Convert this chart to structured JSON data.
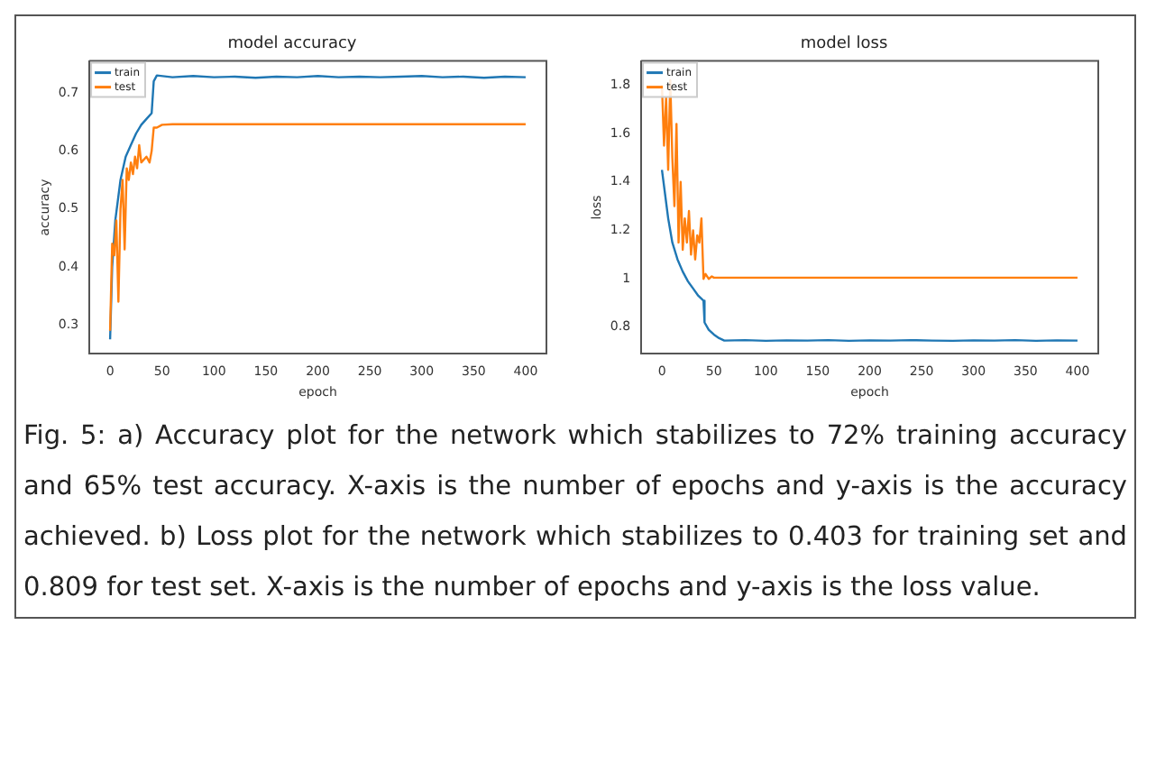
{
  "chart_data": [
    {
      "type": "line",
      "title": "model accuracy",
      "xlabel": "epoch",
      "ylabel": "accuracy",
      "xlim": [
        -20,
        420
      ],
      "xticks": [
        0,
        50,
        100,
        150,
        200,
        250,
        300,
        350,
        400
      ],
      "ylim": [
        0.25,
        0.755
      ],
      "yticks": [
        0.3,
        0.4,
        0.5,
        0.6,
        0.7
      ],
      "grid": false,
      "legend": "top left",
      "marker": "none",
      "line_style": "solid",
      "series": [
        {
          "name": "train",
          "color": "#1f77b4",
          "x": [
            0,
            2,
            5,
            10,
            15,
            20,
            25,
            30,
            35,
            40,
            42,
            45,
            60,
            80,
            100,
            120,
            140,
            160,
            180,
            200,
            220,
            240,
            260,
            280,
            300,
            320,
            340,
            360,
            380,
            400
          ],
          "values": [
            0.275,
            0.4,
            0.48,
            0.55,
            0.59,
            0.61,
            0.63,
            0.645,
            0.655,
            0.665,
            0.72,
            0.73,
            0.727,
            0.729,
            0.727,
            0.728,
            0.726,
            0.728,
            0.727,
            0.729,
            0.727,
            0.728,
            0.727,
            0.728,
            0.729,
            0.727,
            0.728,
            0.726,
            0.728,
            0.727
          ]
        },
        {
          "name": "test",
          "color": "#ff7f0e",
          "x": [
            0,
            2,
            4,
            6,
            8,
            10,
            12,
            14,
            16,
            18,
            20,
            22,
            24,
            26,
            28,
            30,
            35,
            38,
            40,
            42,
            45,
            50,
            60,
            400
          ],
          "values": [
            0.29,
            0.44,
            0.42,
            0.48,
            0.34,
            0.5,
            0.55,
            0.43,
            0.57,
            0.55,
            0.58,
            0.56,
            0.59,
            0.57,
            0.61,
            0.58,
            0.59,
            0.58,
            0.6,
            0.64,
            0.64,
            0.645,
            0.646,
            0.646
          ]
        }
      ]
    },
    {
      "type": "line",
      "title": "model loss",
      "xlabel": "epoch",
      "ylabel": "loss",
      "xlim": [
        -20,
        420
      ],
      "xticks": [
        0,
        50,
        100,
        150,
        200,
        250,
        300,
        350,
        400
      ],
      "ylim": [
        0.69,
        1.9
      ],
      "yticks": [
        0.8,
        1.0,
        1.2,
        1.4,
        1.6,
        1.8
      ],
      "grid": false,
      "legend": "top left",
      "marker": "none",
      "line_style": "solid",
      "series": [
        {
          "name": "train",
          "color": "#1f77b4",
          "x": [
            0,
            3,
            6,
            10,
            15,
            20,
            25,
            30,
            35,
            40,
            41,
            45,
            50,
            55,
            60,
            80,
            100,
            120,
            140,
            160,
            180,
            200,
            220,
            240,
            260,
            280,
            300,
            320,
            340,
            360,
            380,
            400
          ],
          "values": [
            1.45,
            1.35,
            1.25,
            1.15,
            1.08,
            1.03,
            0.99,
            0.96,
            0.93,
            0.91,
            0.82,
            0.79,
            0.77,
            0.755,
            0.745,
            0.747,
            0.744,
            0.746,
            0.745,
            0.747,
            0.744,
            0.746,
            0.745,
            0.747,
            0.745,
            0.744,
            0.746,
            0.745,
            0.747,
            0.744,
            0.746,
            0.745
          ]
        },
        {
          "name": "test",
          "color": "#ff7f0e",
          "x": [
            0,
            2,
            4,
            6,
            8,
            10,
            12,
            14,
            16,
            18,
            20,
            22,
            24,
            26,
            28,
            30,
            32,
            34,
            36,
            38,
            40,
            42,
            45,
            48,
            50,
            400
          ],
          "values": [
            1.8,
            1.55,
            1.75,
            1.45,
            1.82,
            1.5,
            1.3,
            1.64,
            1.15,
            1.4,
            1.12,
            1.25,
            1.15,
            1.28,
            1.1,
            1.2,
            1.08,
            1.18,
            1.15,
            1.25,
            1.0,
            1.02,
            1.0,
            1.01,
            1.005,
            1.005
          ]
        }
      ],
      "annotations": [
        "Fig. 5: a) Accuracy plot for the network which stabilizes to 72% training accuracy and 65% test accuracy. X-axis is the number of epochs and y-axis is the accuracy achieved. b) Loss plot for the network which stabilizes to 0.403 for training set and 0.809 for test set. X-axis is the number of epochs and y-axis is the loss value."
      ]
    }
  ]
}
